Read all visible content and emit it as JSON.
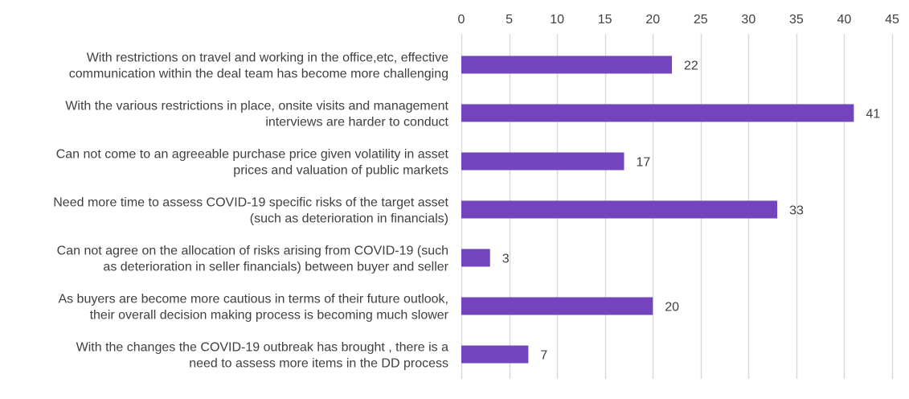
{
  "chart_data": {
    "type": "bar",
    "orientation": "horizontal",
    "x_axis_position": "top",
    "grid": true,
    "xlim": [
      0,
      45
    ],
    "ticks": [
      0,
      5,
      10,
      15,
      20,
      25,
      30,
      35,
      40,
      45
    ],
    "tick_labels": [
      "0",
      "5",
      "10",
      "15",
      "20",
      "25",
      "30",
      "35",
      "40",
      "45"
    ],
    "categories": [
      [
        "With restrictions on travel and working in the office,etc, effective",
        "communication within the deal team has become more challenging"
      ],
      [
        "With the various restrictions in place, onsite visits and management",
        "interviews are harder to conduct"
      ],
      [
        "Can not come to an agreeable purchase price given volatility in asset",
        "prices and valuation of public markets"
      ],
      [
        "Need more time to assess COVID-19 specific risks of the target asset",
        "(such as deterioration in financials)"
      ],
      [
        "Can not agree on the allocation of risks arising from COVID-19 (such",
        "as deterioration in seller financials) between buyer and seller"
      ],
      [
        "As buyers are become more cautious in terms of their future outlook,",
        "their overall decision making process is becoming much slower"
      ],
      [
        "With the changes the COVID-19 outbreak has brought , there is a",
        "need to assess more items in the DD process"
      ]
    ],
    "values": [
      22,
      41,
      17,
      33,
      3,
      20,
      7
    ],
    "data_labels": [
      "22",
      "41",
      "17",
      "33",
      "3",
      "20",
      "7"
    ],
    "title": "",
    "xlabel": "",
    "ylabel": "",
    "colors": {
      "bar": "#7444bf",
      "grid": "#d9d9d9",
      "text": "#404040"
    }
  }
}
